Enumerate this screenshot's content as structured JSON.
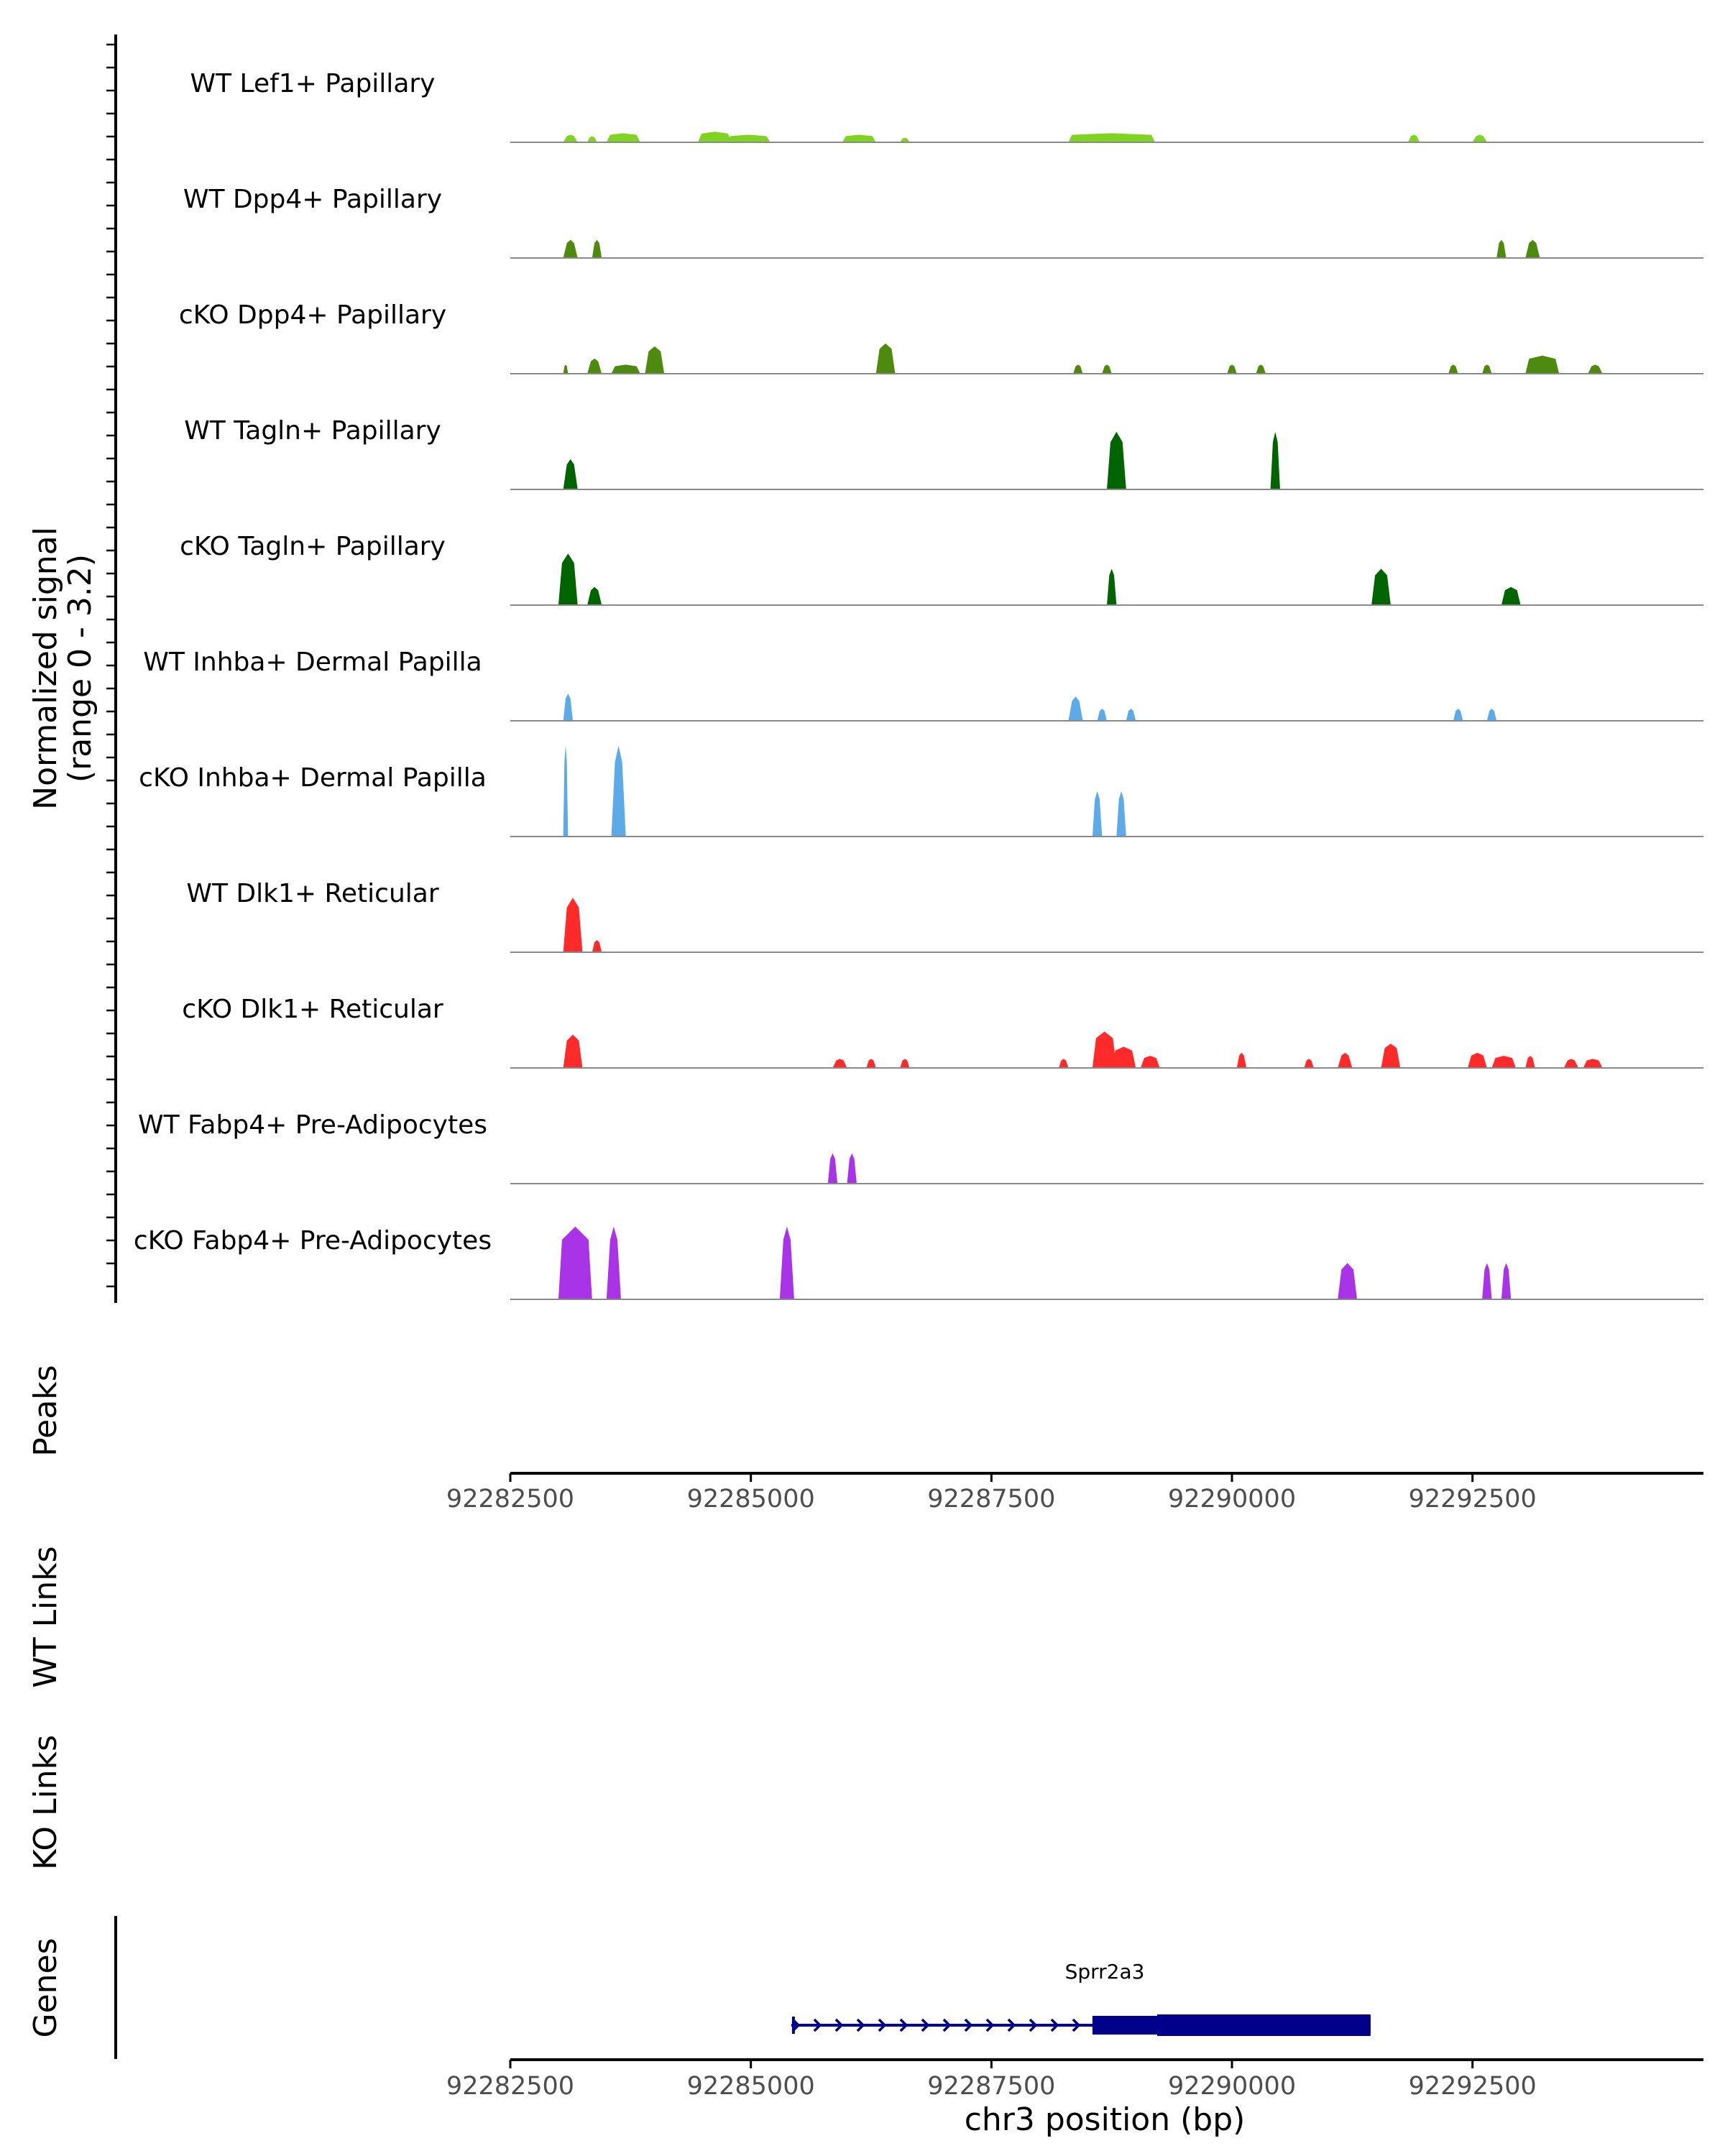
{
  "chart_data": {
    "type": "area",
    "title": "",
    "y_axis_title_line1": "Normalized signal",
    "y_axis_title_line2": "(range 0 - 3.2)",
    "ylim": [
      0,
      3.2
    ],
    "xlim": [
      92282500,
      92294900
    ],
    "xlabel": "chr3 position (bp)",
    "x_ticks": [
      92282500,
      92285000,
      92287500,
      92290000,
      92292500
    ],
    "x_tick_labels": [
      "92282500",
      "92285000",
      "92287500",
      "92290000",
      "92292500"
    ],
    "panel_labels": {
      "peaks": "Peaks",
      "wt_links": "WT Links",
      "ko_links": "KO Links",
      "genes": "Genes"
    },
    "gene": {
      "name": "Sprr2a3",
      "start": 92285420,
      "end": 92291440,
      "thick_start": 92288550,
      "thick_end": 92291440,
      "strand": "+",
      "color": "#00008B"
    },
    "series": [
      {
        "name": "WT Lef1+ Papillary",
        "color": "#7FD321",
        "segments": [
          [
            92283050,
            92283200,
            0.25
          ],
          [
            92283300,
            92283400,
            0.2
          ],
          [
            92283500,
            92283850,
            0.3
          ],
          [
            92284450,
            92284800,
            0.35
          ],
          [
            92284750,
            92285200,
            0.25
          ],
          [
            92285950,
            92286300,
            0.25
          ],
          [
            92286550,
            92286650,
            0.15
          ],
          [
            92288300,
            92289200,
            0.3
          ],
          [
            92291830,
            92291950,
            0.25
          ],
          [
            92292500,
            92292650,
            0.25
          ]
        ]
      },
      {
        "name": "WT Dpp4+ Papillary",
        "color": "#4E8A0E",
        "segments": [
          [
            92283050,
            92283200,
            0.6
          ],
          [
            92283350,
            92283450,
            0.6
          ],
          [
            92292750,
            92292850,
            0.6
          ],
          [
            92293050,
            92293200,
            0.6
          ]
        ]
      },
      {
        "name": "cKO Dpp4+ Papillary",
        "color": "#4E8A0E",
        "segments": [
          [
            92283050,
            92283100,
            0.3
          ],
          [
            92283300,
            92283450,
            0.5
          ],
          [
            92283550,
            92283850,
            0.3
          ],
          [
            92283900,
            92284100,
            0.9
          ],
          [
            92286300,
            92286500,
            1.0
          ],
          [
            92288350,
            92288450,
            0.3
          ],
          [
            92288650,
            92288750,
            0.3
          ],
          [
            92289950,
            92290050,
            0.3
          ],
          [
            92290250,
            92290350,
            0.3
          ],
          [
            92292250,
            92292350,
            0.3
          ],
          [
            92292600,
            92292700,
            0.3
          ],
          [
            92293050,
            92293400,
            0.6
          ],
          [
            92293700,
            92293850,
            0.3
          ]
        ]
      },
      {
        "name": "WT Tagln+ Papillary",
        "color": "#006400",
        "segments": [
          [
            92283050,
            92283200,
            1.0
          ],
          [
            92288700,
            92288900,
            1.9
          ],
          [
            92290400,
            92290500,
            1.9
          ]
        ]
      },
      {
        "name": "cKO Tagln+ Papillary",
        "color": "#006400",
        "segments": [
          [
            92283000,
            92283200,
            1.7
          ],
          [
            92283300,
            92283450,
            0.6
          ],
          [
            92288700,
            92288800,
            1.2
          ],
          [
            92291450,
            92291650,
            1.2
          ],
          [
            92292800,
            92293000,
            0.6
          ]
        ]
      },
      {
        "name": "WT Inhba+ Dermal Papilla",
        "color": "#5DAAE8",
        "segments": [
          [
            92283050,
            92283150,
            0.9
          ],
          [
            92288300,
            92288450,
            0.8
          ],
          [
            92288600,
            92288700,
            0.4
          ],
          [
            92288900,
            92289000,
            0.4
          ],
          [
            92292300,
            92292400,
            0.4
          ],
          [
            92292650,
            92292750,
            0.4
          ]
        ]
      },
      {
        "name": "cKO Inhba+ Dermal Papilla",
        "color": "#5DAAE8",
        "segments": [
          [
            92283050,
            92283100,
            3.0
          ],
          [
            92283550,
            92283700,
            3.0
          ],
          [
            92288550,
            92288650,
            1.5
          ],
          [
            92288800,
            92288900,
            1.5
          ]
        ]
      },
      {
        "name": "WT Dlk1+ Reticular",
        "color": "#FF2A2A",
        "segments": [
          [
            92283050,
            92283250,
            1.8
          ],
          [
            92283350,
            92283450,
            0.4
          ]
        ]
      },
      {
        "name": "cKO Dlk1+ Reticular",
        "color": "#FF2A2A",
        "segments": [
          [
            92283050,
            92283250,
            1.1
          ],
          [
            92285850,
            92286000,
            0.3
          ],
          [
            92286200,
            92286300,
            0.3
          ],
          [
            92286550,
            92286650,
            0.3
          ],
          [
            92288200,
            92288300,
            0.3
          ],
          [
            92288550,
            92288800,
            1.2
          ],
          [
            92288750,
            92289000,
            0.7
          ],
          [
            92289050,
            92289250,
            0.4
          ],
          [
            92290050,
            92290150,
            0.5
          ],
          [
            92290750,
            92290850,
            0.3
          ],
          [
            92291100,
            92291250,
            0.5
          ],
          [
            92291550,
            92291750,
            0.8
          ],
          [
            92292450,
            92292650,
            0.5
          ],
          [
            92292700,
            92292950,
            0.4
          ],
          [
            92293050,
            92293150,
            0.4
          ],
          [
            92293450,
            92293600,
            0.3
          ],
          [
            92293650,
            92293850,
            0.3
          ]
        ]
      },
      {
        "name": "WT Fabp4+ Pre-Adipocytes",
        "color": "#A933E6",
        "segments": [
          [
            92285800,
            92285900,
            1.0
          ],
          [
            92286000,
            92286100,
            1.0
          ]
        ]
      },
      {
        "name": "cKO Fabp4+ Pre-Adipocytes",
        "color": "#A933E6",
        "segments": [
          [
            92283000,
            92283350,
            2.4
          ],
          [
            92283500,
            92283650,
            2.4
          ],
          [
            92285300,
            92285450,
            2.4
          ],
          [
            92291100,
            92291300,
            1.2
          ],
          [
            92292600,
            92292700,
            1.2
          ],
          [
            92292800,
            92292900,
            1.2
          ]
        ]
      }
    ]
  }
}
